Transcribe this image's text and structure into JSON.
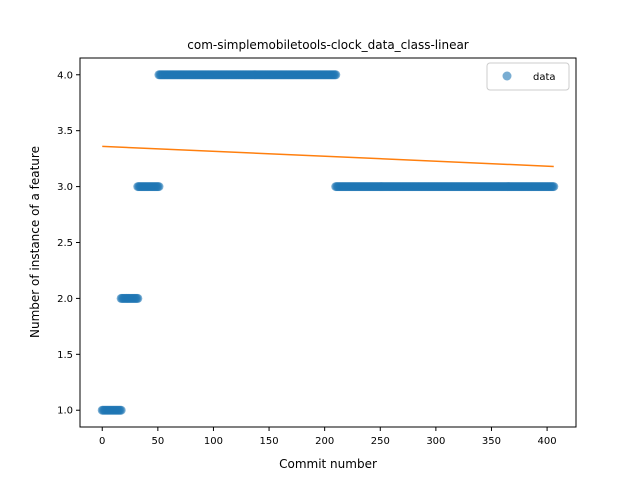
{
  "chart_data": {
    "type": "scatter",
    "title": "com-simplemobiletools-clock_data_class-linear",
    "xlabel": "Commit number",
    "ylabel": "Number of instance of a feature",
    "xlim": [
      -20,
      426
    ],
    "ylim": [
      0.85,
      4.15
    ],
    "xticks": [
      0,
      50,
      100,
      150,
      200,
      250,
      300,
      350,
      400
    ],
    "yticks": [
      1.0,
      1.5,
      2.0,
      2.5,
      3.0,
      3.5,
      4.0
    ],
    "xtick_labels": [
      "0",
      "50",
      "100",
      "150",
      "200",
      "250",
      "300",
      "350",
      "400"
    ],
    "ytick_labels": [
      "1.0",
      "1.5",
      "2.0",
      "2.5",
      "3.0",
      "3.5",
      "4.0"
    ],
    "legend": {
      "position": "top-right",
      "entries": [
        "data"
      ]
    },
    "grid": false,
    "colors": {
      "data": "#1f77b4",
      "fit": "#ff7f0e"
    },
    "series": [
      {
        "name": "data",
        "kind": "scatter",
        "segments": [
          {
            "x_start": 0,
            "x_end": 17,
            "y": 1.0
          },
          {
            "x_start": 17,
            "x_end": 32,
            "y": 2.0
          },
          {
            "x_start": 32,
            "x_end": 51,
            "y": 3.0
          },
          {
            "x_start": 51,
            "x_end": 210,
            "y": 4.0
          },
          {
            "x_start": 210,
            "x_end": 406,
            "y": 3.0
          }
        ]
      },
      {
        "kind": "line",
        "x": [
          0,
          406
        ],
        "y": [
          3.36,
          3.18
        ]
      }
    ]
  }
}
